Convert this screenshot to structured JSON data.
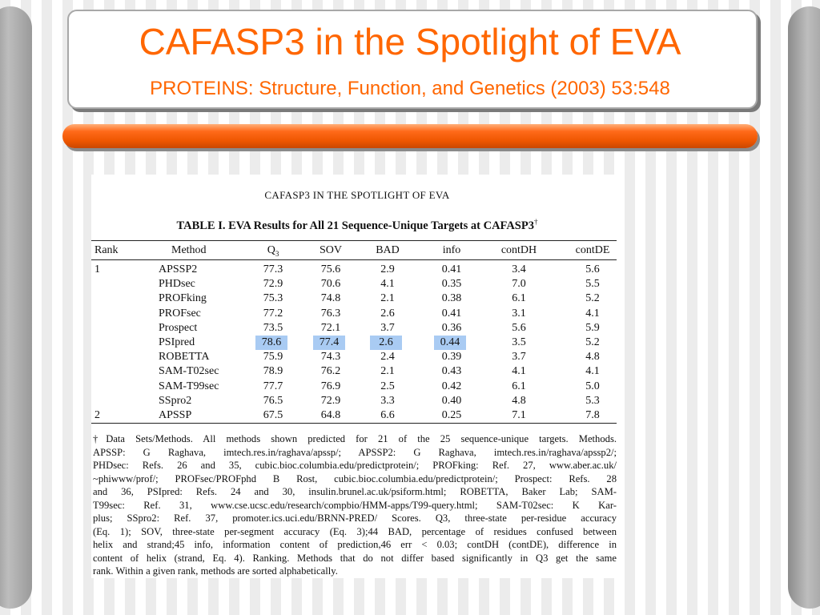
{
  "slide": {
    "title": "CAFASP3 in the Spotlight of EVA",
    "subtitle": "PROTEINS: Structure, Function, and Genetics (2003) 53:548",
    "colors": {
      "accent": "#ff6600",
      "bar": "#ee5600",
      "highlight": "#a9cbf3"
    }
  },
  "doc": {
    "running_head": "CAFASP3 IN THE SPOTLIGHT OF EVA",
    "table_title": "TABLE I. EVA Results for All 21 Sequence-Unique Targets at CAFASP3",
    "table_title_mark": "†",
    "headers": {
      "rank": "Rank",
      "method": "Method",
      "q": "Q",
      "q_sub": "3",
      "sov": "SOV",
      "bad": "BAD",
      "info": "info",
      "contdh": "contDH",
      "contde": "contDE"
    },
    "rows": [
      {
        "rank": "1",
        "method": "APSSP2",
        "q3": "77.3",
        "sov": "75.6",
        "bad": "2.9",
        "info": "0.41",
        "contdh": "3.4",
        "contde": "5.6"
      },
      {
        "rank": "",
        "method": "PHDsec",
        "q3": "72.9",
        "sov": "70.6",
        "bad": "4.1",
        "info": "0.35",
        "contdh": "7.0",
        "contde": "5.5"
      },
      {
        "rank": "",
        "method": "PROFking",
        "q3": "75.3",
        "sov": "74.8",
        "bad": "2.1",
        "info": "0.38",
        "contdh": "6.1",
        "contde": "5.2"
      },
      {
        "rank": "",
        "method": "PROFsec",
        "q3": "77.2",
        "sov": "76.3",
        "bad": "2.6",
        "info": "0.41",
        "contdh": "3.1",
        "contde": "4.1"
      },
      {
        "rank": "",
        "method": "Prospect",
        "q3": "73.5",
        "sov": "72.1",
        "bad": "3.7",
        "info": "0.36",
        "contdh": "5.6",
        "contde": "5.9"
      },
      {
        "rank": "",
        "method": "PSIpred",
        "q3": "78.6",
        "sov": "77.4",
        "bad": "2.6",
        "info": "0.44",
        "contdh": "3.5",
        "contde": "5.2",
        "highlight": true
      },
      {
        "rank": "",
        "method": "ROBETTA",
        "q3": "75.9",
        "sov": "74.3",
        "bad": "2.4",
        "info": "0.39",
        "contdh": "3.7",
        "contde": "4.8"
      },
      {
        "rank": "",
        "method": "SAM-T02sec",
        "q3": "78.9",
        "sov": "76.2",
        "bad": "2.1",
        "info": "0.43",
        "contdh": "4.1",
        "contde": "4.1"
      },
      {
        "rank": "",
        "method": "SAM-T99sec",
        "q3": "77.7",
        "sov": "76.9",
        "bad": "2.5",
        "info": "0.42",
        "contdh": "6.1",
        "contde": "5.0"
      },
      {
        "rank": "",
        "method": "SSpro2",
        "q3": "76.5",
        "sov": "72.9",
        "bad": "3.3",
        "info": "0.40",
        "contdh": "4.8",
        "contde": "5.3"
      },
      {
        "rank": "2",
        "method": "APSSP",
        "q3": "67.5",
        "sov": "64.8",
        "bad": "6.6",
        "info": "0.25",
        "contdh": "7.1",
        "contde": "7.8"
      }
    ],
    "footnote_lines": [
      "†Data Sets/Methods. All methods shown predicted for 21 of the 25 sequence-unique targets. Methods.",
      "APSSP: G Raghava, imtech.res.in/raghava/apssp/; APSSP2: G Raghava, imtech.res.in/raghava/apssp2/;",
      "PHDsec: Refs. 26 and 35, cubic.bioc.columbia.edu/predictprotein/; PROFking: Ref. 27, www.aber.ac.uk/",
      "~phiwww/prof/; PROFsec/PROFphd B Rost, cubic.bioc.columbia.edu/predictprotein/; Prospect: Refs. 28",
      "and 36, PSIpred: Refs. 24 and 30, insulin.brunel.ac.uk/psiform.html; ROBETTA, Baker Lab; SAM-",
      "T99sec: Ref. 31, www.cse.ucsc.edu/research/compbio/HMM-apps/T99-query.html; SAM-T02sec: K Kar-",
      "plus; SSpro2: Ref. 37, promoter.ics.uci.edu/BRNN-PRED/ Scores. Q3, three-state per-residue accuracy",
      "(Eq. 1); SOV, three-state per-segment accuracy (Eq. 3);44 BAD, percentage of residues confused between",
      "helix and strand;45 info, information content of prediction,46 err < 0.03; contDH (contDE), difference in",
      "content of helix (strand, Eq. 4). Ranking. Methods that do not differ based significantly in Q3 get the same",
      "rank. Within a given rank, methods are sorted alphabetically."
    ]
  }
}
